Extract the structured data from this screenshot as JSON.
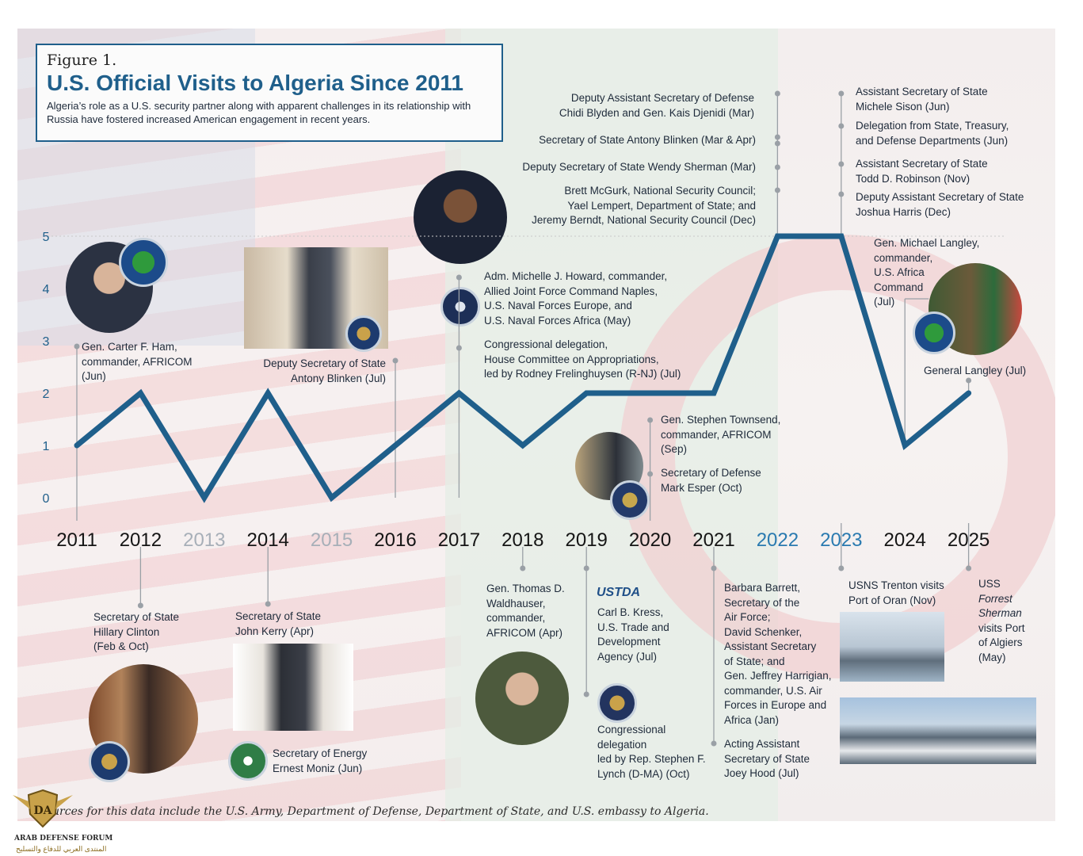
{
  "figure_number": "Figure 1.",
  "title": "U.S. Official Visits to Algeria Since 2011",
  "subtitle": "Algeria’s role as a U.S. security partner along with apparent challenges in its relationship with Russia have fostered increased American engagement in recent years.",
  "source": "Sources for this data include the U.S. Army, Department of Defense, Department of State, and U.S. embassy to Algeria.",
  "watermark": {
    "name": "ARAB DEFENSE FORUM",
    "arabic": "المنتدى العربي للدفاع والتسليح",
    "mark": "DA"
  },
  "colors": {
    "line": "#1f5f8b",
    "title": "#1f5f8b",
    "muted_year": "#a7afb8",
    "highlight_year": "#2a7ab0"
  },
  "chart_data": {
    "type": "line",
    "title": "U.S. Official Visits to Algeria Since 2011",
    "x": [
      "2011",
      "2012",
      "2013",
      "2014",
      "2015",
      "2016",
      "2017",
      "2018",
      "2019",
      "2020",
      "2021",
      "2022",
      "2023",
      "2024",
      "2025"
    ],
    "year_style": [
      "normal",
      "normal",
      "muted",
      "normal",
      "muted",
      "normal",
      "normal",
      "normal",
      "normal",
      "normal",
      "normal",
      "highlight",
      "highlight",
      "normal",
      "normal"
    ],
    "values": [
      1,
      2,
      0,
      2,
      0,
      1,
      2,
      1,
      2,
      2,
      2,
      5,
      5,
      1,
      2
    ],
    "y_ticks": [
      "0",
      "1",
      "2",
      "3",
      "4",
      "5"
    ],
    "ylim": [
      0,
      5
    ],
    "grid": "dotted line at 5",
    "annotations": [
      {
        "year": "2011",
        "side": "above",
        "lines": [
          "Gen. Carter F. Ham,",
          "commander, AFRICOM",
          "(Jun)"
        ]
      },
      {
        "year": "2012",
        "side": "below",
        "lines": [
          "Secretary of State",
          "Hillary Clinton",
          "(Feb & Oct)"
        ]
      },
      {
        "year": "2014",
        "side": "below",
        "lines": [
          "Secretary of State",
          "John Kerry (Apr)"
        ]
      },
      {
        "year": "2014",
        "side": "below",
        "lines": [
          "Secretary of Energy",
          "Ernest Moniz (Jun)"
        ]
      },
      {
        "year": "2016",
        "side": "above",
        "lines": [
          "Deputy Secretary of State",
          "Antony Blinken (Jul)"
        ]
      },
      {
        "year": "2017",
        "side": "above",
        "lines": [
          "Adm. Michelle J. Howard, commander,",
          "Allied Joint Force Command Naples,",
          "U.S. Naval Forces Europe, and",
          "U.S. Naval Forces Africa (May)"
        ]
      },
      {
        "year": "2017",
        "side": "above",
        "lines": [
          "Congressional delegation,",
          "House Committee on Appropriations,",
          "led by Rodney Frelinghuysen (R-NJ) (Jul)"
        ]
      },
      {
        "year": "2018",
        "side": "below",
        "lines": [
          "Gen. Thomas D.",
          "Waldhauser,",
          "commander,",
          "AFRICOM (Apr)"
        ]
      },
      {
        "year": "2019",
        "side": "below",
        "lines": [
          "Carl B. Kress,",
          "U.S. Trade and",
          "Development",
          "Agency (Jul)"
        ]
      },
      {
        "year": "2019",
        "side": "below",
        "lines": [
          "Congressional",
          "delegation",
          "led by Rep. Stephen F.",
          "Lynch (D-MA) (Oct)"
        ]
      },
      {
        "year": "2020",
        "side": "above",
        "lines": [
          "Gen. Stephen Townsend,",
          "commander, AFRICOM",
          "(Sep)"
        ]
      },
      {
        "year": "2020",
        "side": "above",
        "lines": [
          "Secretary of Defense",
          "Mark Esper (Oct)"
        ]
      },
      {
        "year": "2021",
        "side": "below",
        "lines": [
          "Barbara Barrett,",
          "Secretary of the",
          "Air Force;",
          "David Schenker,",
          "Assistant Secretary",
          "of State; and",
          "Gen. Jeffrey Harrigian,",
          "commander, U.S. Air",
          "Forces in Europe and",
          "Africa (Jan)"
        ]
      },
      {
        "year": "2021",
        "side": "below",
        "lines": [
          "Acting Assistant",
          "Secretary of State",
          "Joey Hood (Jul)"
        ]
      },
      {
        "year": "2022",
        "side": "above",
        "lines": [
          "Deputy Assistant Secretary of Defense",
          "Chidi Blyden and Gen. Kais Djenidi (Mar)"
        ]
      },
      {
        "year": "2022",
        "side": "above",
        "lines": [
          "Secretary of State Antony Blinken (Mar & Apr)"
        ]
      },
      {
        "year": "2022",
        "side": "above",
        "lines": [
          "Deputy Secretary of State Wendy Sherman (Mar)"
        ]
      },
      {
        "year": "2022",
        "side": "above",
        "lines": [
          "Brett McGurk, National Security Council;",
          "Yael Lempert, Department of State; and",
          "Jeremy Berndt, National Security Council (Dec)"
        ]
      },
      {
        "year": "2023",
        "side": "above",
        "lines": [
          "Assistant Secretary of State",
          "Michele Sison (Jun)"
        ]
      },
      {
        "year": "2023",
        "side": "above",
        "lines": [
          "Delegation from State, Treasury,",
          "and Defense Departments (Jun)"
        ]
      },
      {
        "year": "2023",
        "side": "above",
        "lines": [
          "Assistant Secretary of State",
          "Todd D. Robinson (Nov)"
        ]
      },
      {
        "year": "2023",
        "side": "above",
        "lines": [
          "Deputy Assistant Secretary of State",
          "Joshua Harris (Dec)"
        ]
      },
      {
        "year": "2023",
        "side": "below",
        "lines": [
          "USNS Trenton visits",
          "Port of Oran (Nov)"
        ]
      },
      {
        "year": "2024",
        "side": "above",
        "lines": [
          "Gen. Michael Langley,",
          "commander,",
          "U.S. Africa",
          "Command",
          "(Jul)"
        ]
      },
      {
        "year": "2025",
        "side": "above",
        "lines": [
          "General Langley (Jul)"
        ]
      },
      {
        "year": "2025",
        "side": "below",
        "lines": [
          "USS",
          "Forrest",
          "Sherman",
          "visits Port",
          "of Algiers",
          "(May)"
        ]
      }
    ],
    "logos": [
      "USTDA"
    ]
  }
}
